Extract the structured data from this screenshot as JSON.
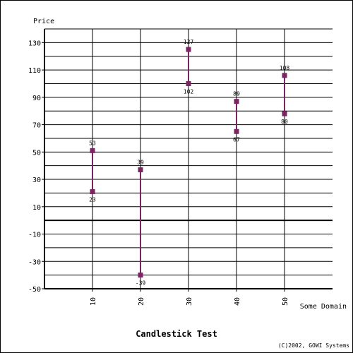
{
  "chart_data": {
    "type": "candlestick",
    "title": "Candlestick Test",
    "ylabel": "Price",
    "xlabel": "Some Domain",
    "credit": "(C)2002, GOWI Systems",
    "xlim": [
      0,
      60
    ],
    "ylim": [
      -50,
      140
    ],
    "yticks": [
      -50,
      -30,
      -10,
      10,
      30,
      50,
      70,
      90,
      110,
      130
    ],
    "xticks": [
      10,
      20,
      30,
      40,
      50
    ],
    "grid": true,
    "colors": {
      "series": "#7b2462",
      "grid": "#000000"
    },
    "points": [
      {
        "x": 10,
        "low": 21,
        "high": 51,
        "low_label": "23",
        "high_label": "53"
      },
      {
        "x": 20,
        "low": -40,
        "high": 37,
        "low_label": "-39",
        "high_label": "39"
      },
      {
        "x": 30,
        "low": 100,
        "high": 125,
        "low_label": "102",
        "high_label": "127"
      },
      {
        "x": 40,
        "low": 65,
        "high": 87,
        "low_label": "67",
        "high_label": "89"
      },
      {
        "x": 50,
        "low": 78,
        "high": 106,
        "low_label": "80",
        "high_label": "108"
      }
    ]
  }
}
